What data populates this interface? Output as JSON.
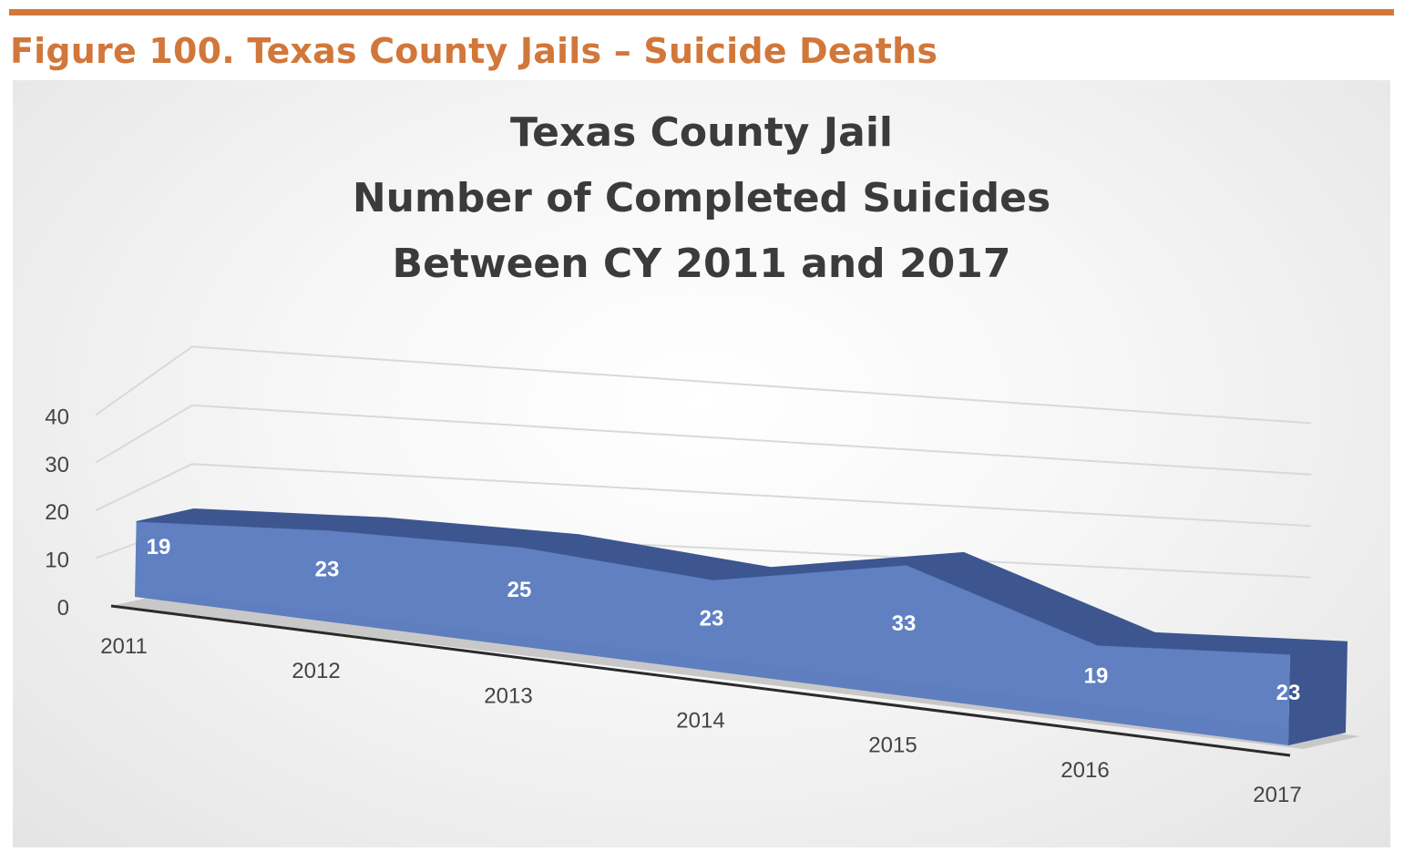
{
  "figure_caption": "Figure 100. Texas County Jails – Suicide Deaths",
  "colors": {
    "accent": "#d2773a",
    "area_front": "#5b7bc0",
    "area_top": "#3d5690",
    "floor": "#c8c8c8",
    "gridline": "#d9d9d9",
    "text": "#3b3b3b"
  },
  "chart_data": {
    "type": "area",
    "style": "3d",
    "title_lines": [
      "Texas County Jail",
      "Number of Completed Suicides",
      "Between CY 2011 and 2017"
    ],
    "categories": [
      "2011",
      "2012",
      "2013",
      "2014",
      "2015",
      "2016",
      "2017"
    ],
    "series": [
      {
        "values": [
          19,
          23,
          25,
          23,
          33,
          19,
          23
        ],
        "data_labels": [
          "19",
          "23",
          "25",
          "23",
          "33",
          "19",
          "23"
        ]
      }
    ],
    "y_ticks": [
      "0",
      "10",
      "20",
      "30",
      "40"
    ],
    "ylim": [
      0,
      40
    ],
    "grid": true,
    "legend": "none"
  }
}
